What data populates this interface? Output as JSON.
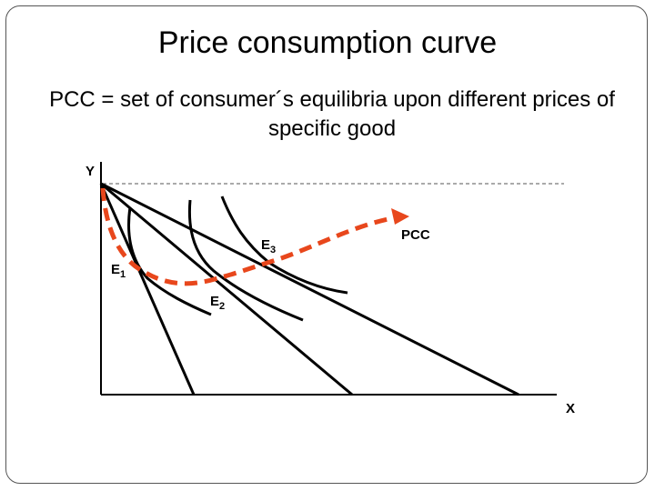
{
  "slide": {
    "title": "Price consumption curve",
    "subtitle": "PCC = set of consumer´s equilibria upon different prices of specific good"
  },
  "diagram": {
    "axis_y_label": "Y",
    "axis_x_label": "X",
    "curve_label": "PCC",
    "equilibria": [
      {
        "letter": "E",
        "index": "1"
      },
      {
        "letter": "E",
        "index": "2"
      },
      {
        "letter": "E",
        "index": "3"
      }
    ],
    "colors": {
      "lines": "#000000",
      "pcc": "#e8471c",
      "reference": "#555555"
    }
  }
}
